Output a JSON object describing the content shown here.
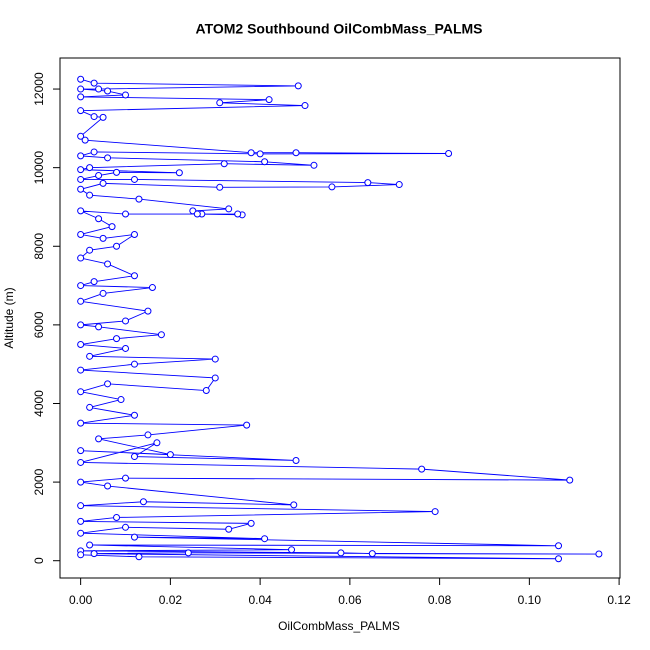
{
  "chart_data": {
    "type": "line",
    "title": "ATOM2 Southbound OilCombMass_PALMS",
    "x_label": "OilCombMass_PALMS",
    "y_label": "Altitude (m)",
    "xlim": [
      -0.0046,
      0.1202
    ],
    "ylim": [
      -440,
      12790
    ],
    "xticks": [
      {
        "value": 0,
        "label": "0.00"
      },
      {
        "value": 0.02,
        "label": "0.02"
      },
      {
        "value": 0.04,
        "label": "0.04"
      },
      {
        "value": 0.06,
        "label": "0.06"
      },
      {
        "value": 0.08,
        "label": "0.08"
      },
      {
        "value": 0.1,
        "label": "0.10"
      },
      {
        "value": 0.12,
        "label": "0.12"
      }
    ],
    "yticks": [
      0,
      2000,
      4000,
      6000,
      8000,
      10000,
      12000
    ],
    "series": [
      {
        "color": "#0000ff",
        "x": [
          0,
          0.003,
          0.0485,
          0.004,
          0,
          0.006,
          0.01,
          0,
          0.042,
          0.031,
          0.05,
          0,
          0.003,
          0.005,
          0,
          0.001,
          0.038,
          0.048,
          0.082,
          0.04,
          0.003,
          0,
          0.006,
          0.041,
          0.052,
          0.032,
          0.002,
          0,
          0.022,
          0.008,
          0.004,
          0,
          0.012,
          0.064,
          0.071,
          0.056,
          0.031,
          0.005,
          0,
          0.002,
          0.013,
          0.033,
          0.025,
          0.027,
          0.026,
          0.036,
          0.035,
          0.01,
          0,
          0.004,
          0.007,
          0,
          0.005,
          0.012,
          0.008,
          0.002,
          0,
          0.006,
          0.012,
          0.003,
          0,
          0.016,
          0.005,
          0,
          0.015,
          0.01,
          0,
          0.004,
          0.018,
          0.008,
          0,
          0.01,
          0.002,
          0.03,
          0.012,
          0,
          0.03,
          0.028,
          0.006,
          0,
          0.009,
          0.002,
          0.012,
          0,
          0.037,
          0.015,
          0.004,
          0.02,
          0,
          0.048,
          0.012,
          0.017,
          0,
          0.076,
          0.109,
          0.01,
          0,
          0.006,
          0.0475,
          0.014,
          0,
          0.079,
          0.008,
          0,
          0.038,
          0.033,
          0.01,
          0,
          0.041,
          0.012,
          0.1065,
          0.002,
          0.047,
          0,
          0.058,
          0.065,
          0.1155,
          0.024,
          0.003,
          0.1065,
          0.013,
          0
        ],
        "values": [
          12250,
          12150,
          12080,
          12000,
          12000,
          11950,
          11850,
          11800,
          11730,
          11650,
          11580,
          11450,
          11300,
          11280,
          10800,
          10700,
          10380,
          10380,
          10360,
          10350,
          10400,
          10300,
          10250,
          10150,
          10060,
          10100,
          10000,
          9950,
          9870,
          9880,
          9800,
          9700,
          9700,
          9620,
          9570,
          9510,
          9500,
          9600,
          9450,
          9300,
          9200,
          8950,
          8900,
          8820,
          8820,
          8800,
          8820,
          8820,
          8900,
          8700,
          8500,
          8300,
          8200,
          8300,
          8000,
          7900,
          7700,
          7550,
          7250,
          7100,
          7000,
          6950,
          6800,
          6600,
          6350,
          6100,
          6000,
          5950,
          5750,
          5650,
          5500,
          5400,
          5200,
          5130,
          5000,
          4850,
          4650,
          4330,
          4500,
          4300,
          4100,
          3900,
          3700,
          3500,
          3450,
          3200,
          3100,
          2700,
          2800,
          2550,
          2650,
          3000,
          2500,
          2330,
          2050,
          2100,
          2000,
          1900,
          1420,
          1500,
          1400,
          1250,
          1100,
          1000,
          950,
          800,
          850,
          700,
          560,
          600,
          380,
          400,
          280,
          250,
          200,
          180,
          170,
          200,
          180,
          50,
          100,
          150
        ]
      }
    ]
  }
}
